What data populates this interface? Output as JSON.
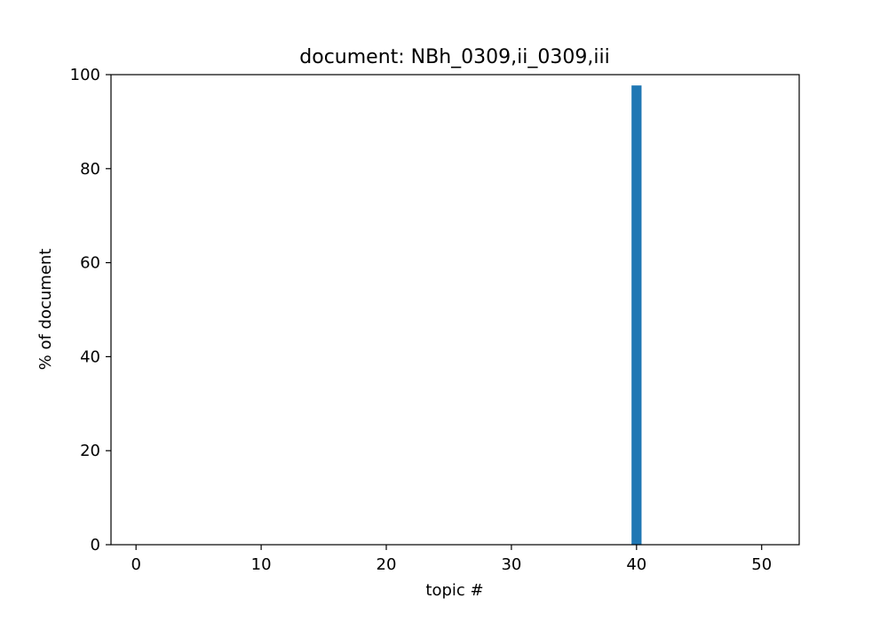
{
  "chart_data": {
    "type": "bar",
    "title": "document: NBh_0309,ii_0309,iii",
    "xlabel": "topic #",
    "ylabel": "% of document",
    "xlim": [
      -2,
      53
    ],
    "ylim": [
      0,
      100
    ],
    "xticks": [
      0,
      10,
      20,
      30,
      40,
      50
    ],
    "yticks": [
      0,
      20,
      40,
      60,
      80,
      100
    ],
    "bar_width": 0.8,
    "color": "#1f77b4",
    "grid": false,
    "bars": [
      {
        "x": 40,
        "value": 97.7
      }
    ]
  }
}
